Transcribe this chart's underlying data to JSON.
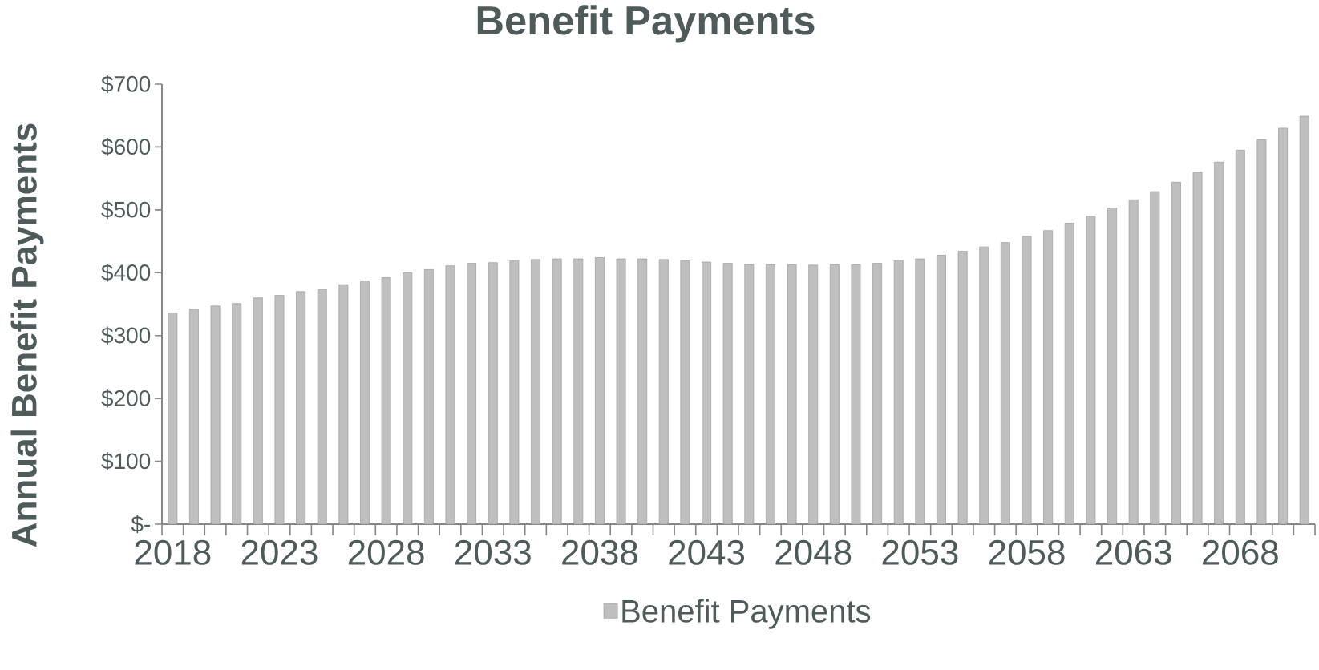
{
  "chart_data": {
    "type": "bar",
    "title": "Benefit Payments",
    "ylabel": "Annual Benefit Payments",
    "categories": [
      "2018",
      null,
      null,
      null,
      null,
      "2023",
      null,
      null,
      null,
      null,
      "2028",
      null,
      null,
      null,
      null,
      "2033",
      null,
      null,
      null,
      null,
      "2038",
      null,
      null,
      null,
      null,
      "2043",
      null,
      null,
      null,
      null,
      "2048",
      null,
      null,
      null,
      null,
      "2053",
      null,
      null,
      null,
      null,
      "2058",
      null,
      null,
      null,
      null,
      "2063",
      null,
      null,
      null,
      null,
      "2068",
      null,
      null,
      null
    ],
    "series": [
      {
        "name": "Benefit Payments",
        "color": "#bfbfbf",
        "values": [
          336,
          342,
          347,
          351,
          360,
          364,
          370,
          373,
          381,
          387,
          392,
          400,
          405,
          411,
          415,
          416,
          419,
          421,
          422,
          422,
          424,
          422,
          422,
          421,
          419,
          417,
          415,
          413,
          413,
          413,
          412,
          413,
          413,
          415,
          419,
          422,
          428,
          434,
          441,
          448,
          458,
          467,
          479,
          490,
          503,
          516,
          529,
          544,
          560,
          576,
          595,
          612,
          630,
          649
        ]
      }
    ],
    "ylim": [
      0,
      700
    ],
    "yticks": [
      {
        "value": 0,
        "label": "$-"
      },
      {
        "value": 100,
        "label": "$100"
      },
      {
        "value": 200,
        "label": "$200"
      },
      {
        "value": 300,
        "label": "$300"
      },
      {
        "value": 400,
        "label": "$400"
      },
      {
        "value": 500,
        "label": "$500"
      },
      {
        "value": 600,
        "label": "$600"
      },
      {
        "value": 700,
        "label": "$700"
      }
    ],
    "legend": "bottom"
  }
}
